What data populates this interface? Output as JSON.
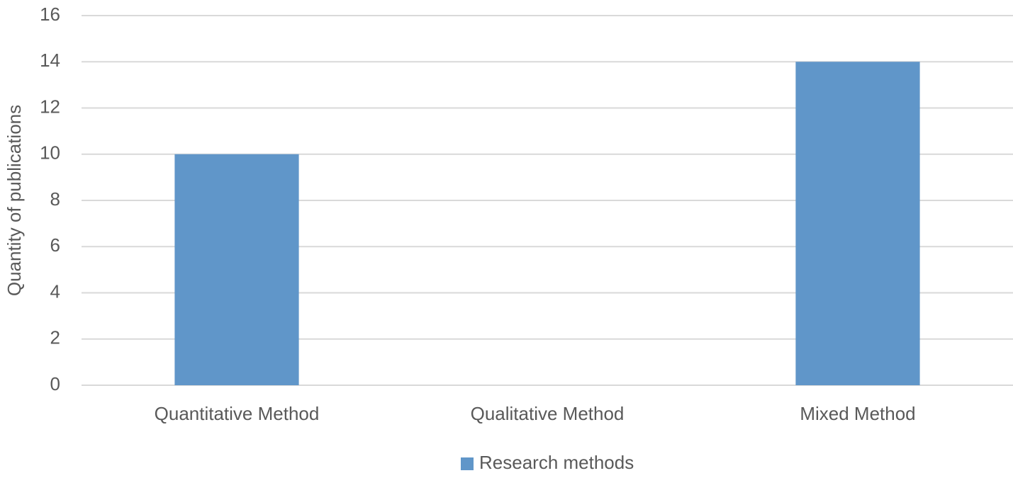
{
  "chart_data": {
    "type": "bar",
    "y_label": "Quantity of publications",
    "categories": [
      "Quantitative Method",
      "Qualitative Method",
      "Mixed Method"
    ],
    "series": [
      {
        "name": "Research methods",
        "color": "#6096c9",
        "values": [
          10,
          0,
          14
        ]
      }
    ],
    "ylim": [
      0,
      16
    ],
    "yticks": [
      0,
      2,
      4,
      6,
      8,
      10,
      12,
      14,
      16
    ],
    "grid": true,
    "legend": "bottom"
  }
}
